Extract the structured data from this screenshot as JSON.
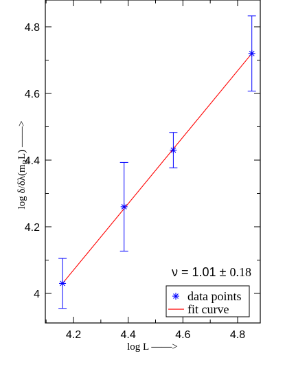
{
  "chart_data": {
    "type": "scatter",
    "xlabel": "log L ——>",
    "ylabel_parts": {
      "prefix": "log δ/δλ(m",
      "sub": "R",
      "suffix": "L)  ——>"
    },
    "xlim": [
      4.08,
      4.93
    ],
    "ylim": [
      3.91,
      4.98
    ],
    "x_ticks": [
      "4.2",
      "4.4",
      "4.6",
      "4.8"
    ],
    "x_tick_values": [
      4.2,
      4.4,
      4.6,
      4.8
    ],
    "y_ticks": [
      "4",
      "4.2",
      "4.4",
      "4.6",
      "4.8"
    ],
    "y_tick_values": [
      4.0,
      4.2,
      4.4,
      4.6,
      4.8
    ],
    "series": [
      {
        "name": "data points",
        "kind": "points_with_errorbars",
        "color": "#0000ff",
        "marker": "asterisk",
        "points": [
          {
            "x": 4.16,
            "y": 4.03,
            "err": 0.075
          },
          {
            "x": 4.385,
            "y": 4.26,
            "err": 0.133
          },
          {
            "x": 4.565,
            "y": 4.43,
            "err": 0.053
          },
          {
            "x": 4.852,
            "y": 4.72,
            "err": 0.113
          }
        ]
      },
      {
        "name": "fit curve",
        "kind": "line",
        "color": "#ff0000",
        "x": [
          4.16,
          4.852
        ],
        "y": [
          4.03,
          4.72
        ]
      }
    ],
    "annotation": {
      "nu_label": "ν = ",
      "value": "1.01",
      "pm": "±",
      "error": "0.18"
    },
    "legend_position": "bottom-right"
  }
}
